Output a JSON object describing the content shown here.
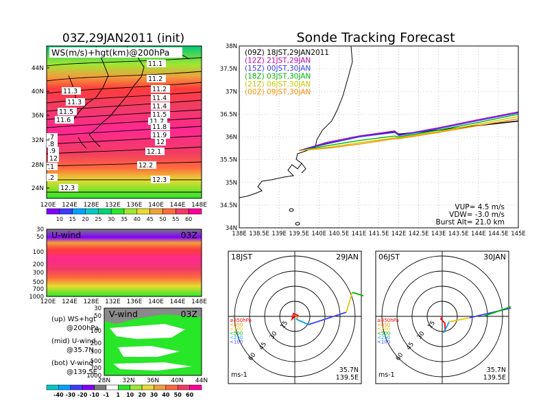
{
  "left_panel": {
    "title": "03Z,29JAN2011 (init)",
    "map_label": "WS(m/s)+hgt(km)@200hPa",
    "lat_ticks": [
      "44N",
      "40N",
      "36N",
      "32N",
      "28N",
      "24N"
    ],
    "lon_ticks": [
      "120E",
      "124E",
      "128E",
      "132E",
      "136E",
      "140E",
      "144E",
      "148E"
    ],
    "height_labels": [
      "11.1",
      "11.2",
      "11.3",
      "11.2",
      "11.3",
      "11.4",
      "11.5",
      "11.4",
      "11.6",
      "11.5",
      "11.7",
      "11.8",
      "11.9",
      "12",
      "12.1",
      "12.2",
      "12.3",
      "12.3",
      ".7",
      ".8",
      ".9",
      "12",
      ".1",
      ".2"
    ],
    "ws_colorbar": {
      "labels": [
        "10",
        "15",
        "20",
        "25",
        "30",
        "35",
        "40",
        "45",
        "50",
        "55",
        "60"
      ],
      "colors": [
        "#8000ff",
        "#3c3cff",
        "#00a0ff",
        "#00c8c8",
        "#00d278",
        "#28e628",
        "#a0e632",
        "#e6dc32",
        "#f0a03c",
        "#ff6a3c",
        "#f03c64",
        "#ff0096"
      ]
    },
    "u_wind": {
      "label": "U-wind",
      "time": "03Z",
      "y_ticks": [
        "30",
        "50",
        "100",
        "200",
        "300",
        "500",
        "700",
        "1000"
      ],
      "x_ticks": [
        "120E",
        "124E",
        "128E",
        "132E",
        "136E",
        "140E",
        "144E",
        "148E"
      ]
    },
    "v_wind": {
      "label": "V-wind",
      "time": "03Z",
      "y_ticks": [
        "30",
        "50",
        "100",
        "200",
        "300",
        "500",
        "700",
        "1000"
      ],
      "x_ticks": [
        "28N",
        "32N",
        "36N",
        "40N",
        "44N"
      ]
    },
    "legend": [
      {
        "line1": "(up) WS+hgt",
        "line2": "@200hPa"
      },
      {
        "line1": "(mid) U-wind",
        "line2": "@35.7N"
      },
      {
        "line1": "(bot) V-wind",
        "line2": "@139.5E"
      }
    ],
    "wind_colorbar": {
      "labels": [
        "-40",
        "-30",
        "-20",
        "-10",
        "-1",
        "1",
        "10",
        "20",
        "30",
        "40",
        "50",
        "60"
      ],
      "colors": [
        "#00c8c8",
        "#00a0ff",
        "#3c3cff",
        "#8000ff",
        "#7a7a7a",
        "#ffffff",
        "#28e628",
        "#a0e632",
        "#e6dc32",
        "#f0a03c",
        "#ff6a3c",
        "#f03c64",
        "#ff0096"
      ]
    }
  },
  "tracking": {
    "title": "Sonde Tracking Forecast",
    "lat_ticks": [
      "38N",
      "37.5N",
      "37N",
      "36.5N",
      "36N",
      "35.5N",
      "35N",
      "34.5N",
      "34N"
    ],
    "lon_ticks": [
      "138E",
      "138.5E",
      "139E",
      "139.5E",
      "140E",
      "140.5E",
      "141E",
      "141.5E",
      "142E",
      "142.5E",
      "143E",
      "143.5E",
      "144E",
      "144.5E",
      "145E"
    ],
    "legend": [
      {
        "text": "(09Z) 18JST,29JAN2011",
        "color": "#000000"
      },
      {
        "text": "(12Z) 21JST,29JAN",
        "color": "#b400b4"
      },
      {
        "text": "(15Z) 00JST,30JAN",
        "color": "#3c3cff"
      },
      {
        "text": "(18Z) 03JST,30JAN",
        "color": "#00b400"
      },
      {
        "text": "(21Z) 06JST,30JAN",
        "color": "#c8c800"
      },
      {
        "text": "(00Z) 09JST,30JAN",
        "color": "#ff8c00"
      }
    ],
    "params": [
      "VUP= 4.5 m/s",
      "VDW= -3.0 m/s",
      "Burst Alt= 21.0 km"
    ]
  },
  "chart_data": [
    {
      "type": "line",
      "title": "Sonde Tracking Forecast",
      "xlim": [
        138.0,
        145.0
      ],
      "ylim": [
        34.0,
        38.0
      ],
      "series": [
        {
          "name": "(09Z) 18JST,29JAN2011",
          "color": "#000000",
          "points": [
            [
              139.5,
              35.7
            ],
            [
              140.2,
              35.85
            ],
            [
              141.0,
              36.0
            ],
            [
              141.9,
              36.12
            ],
            [
              142.0,
              36.06
            ],
            [
              143.0,
              36.15
            ],
            [
              144.0,
              36.25
            ],
            [
              145.0,
              36.35
            ]
          ]
        },
        {
          "name": "(12Z) 21JST,29JAN",
          "color": "#b400b4",
          "points": [
            [
              139.5,
              35.7
            ],
            [
              140.2,
              35.88
            ],
            [
              141.0,
              36.02
            ],
            [
              141.9,
              36.13
            ],
            [
              142.0,
              36.04
            ],
            [
              143.0,
              36.2
            ],
            [
              144.0,
              36.38
            ],
            [
              145.0,
              36.55
            ]
          ]
        },
        {
          "name": "(15Z) 00JST,30JAN",
          "color": "#3c3cff",
          "points": [
            [
              139.5,
              35.7
            ],
            [
              140.2,
              35.86
            ],
            [
              141.0,
              36.0
            ],
            [
              141.9,
              36.1
            ],
            [
              142.0,
              36.03
            ],
            [
              143.0,
              36.18
            ],
            [
              144.0,
              36.36
            ],
            [
              145.0,
              36.53
            ]
          ]
        },
        {
          "name": "(18Z) 03JST,30JAN",
          "color": "#00b400",
          "points": [
            [
              139.5,
              35.7
            ],
            [
              140.3,
              35.82
            ],
            [
              141.0,
              35.92
            ],
            [
              141.9,
              36.02
            ],
            [
              142.0,
              36.0
            ],
            [
              143.0,
              36.15
            ],
            [
              144.0,
              36.32
            ],
            [
              145.0,
              36.5
            ]
          ]
        },
        {
          "name": "(21Z) 06JST,30JAN",
          "color": "#c8c800",
          "points": [
            [
              139.5,
              35.7
            ],
            [
              140.3,
              35.78
            ],
            [
              141.0,
              35.87
            ],
            [
              141.9,
              35.98
            ],
            [
              142.0,
              35.98
            ],
            [
              143.0,
              36.12
            ],
            [
              144.0,
              36.28
            ],
            [
              145.0,
              36.45
            ]
          ]
        },
        {
          "name": "(00Z) 09JST,30JAN",
          "color": "#ff8c00",
          "points": [
            [
              139.5,
              35.7
            ],
            [
              140.3,
              35.76
            ],
            [
              141.0,
              35.84
            ],
            [
              141.9,
              35.96
            ],
            [
              142.0,
              35.96
            ],
            [
              143.0,
              36.1
            ],
            [
              144.0,
              36.25
            ],
            [
              145.0,
              36.4
            ]
          ]
        }
      ]
    }
  ],
  "hodographs": [
    {
      "time": "18JST",
      "date": "29JAN",
      "lat": "35.7N",
      "lon": "139.5E",
      "unit": "ms-1"
    },
    {
      "time": "06JST",
      "date": "30JAN",
      "lat": "35.7N",
      "lon": "139.5E",
      "unit": "ms-1"
    }
  ],
  "hodo_rings": [
    "15",
    "30",
    "45",
    "60"
  ],
  "hodo_levels": [
    {
      "text": "≥850hPa",
      "color": "#ff0000"
    },
    {
      "text": "<850",
      "color": "#ff8c00"
    },
    {
      "text": "<700",
      "color": "#e6c800"
    },
    {
      "text": "<500",
      "color": "#00b400"
    },
    {
      "text": "<250",
      "color": "#00a0ff"
    },
    {
      "text": "<100",
      "color": "#3c3cff"
    }
  ]
}
